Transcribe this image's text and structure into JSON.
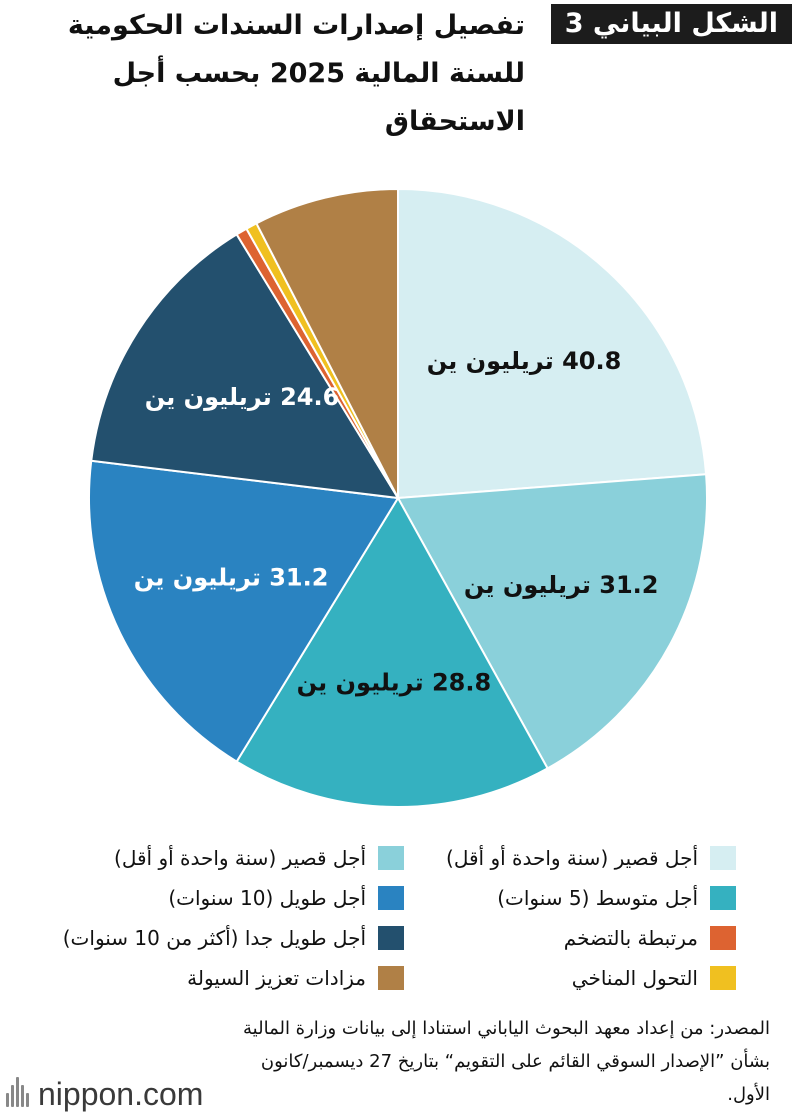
{
  "header": {
    "figure_label": "الشكل البياني 3",
    "title": "تفصيل إصدارات السندات الحكومية للسنة المالية 2025 بحسب أجل الاستحقاق"
  },
  "chart_data": {
    "type": "pie",
    "unit": "تريليون ين",
    "start_angle_deg": 0,
    "direction": "clockwise",
    "slices": [
      {
        "label": "أجل قصير (سنة واحدة أو أقل)",
        "value": 40.8,
        "data_label": "40.8 تريليون ين",
        "color": "#d6eef2",
        "label_color": "#111111"
      },
      {
        "label": "أجل قصير (سنة واحدة أو أقل)",
        "value": 31.2,
        "data_label": "31.2 تريليون ين",
        "color": "#8ad0da",
        "label_color": "#111111"
      },
      {
        "label": "أجل متوسط (5 سنوات)",
        "value": 28.8,
        "data_label": "28.8 تريليون ين",
        "color": "#35b1c0",
        "label_color": "#111111"
      },
      {
        "label": "أجل طويل (10 سنوات)",
        "value": 31.2,
        "data_label": "31.2 تريليون ين",
        "color": "#2a83c1",
        "label_color": "#ffffff"
      },
      {
        "label": "أجل طويل جدا (أكثر من 10 سنوات)",
        "value": 24.6,
        "data_label": "24.6 تريليون ين",
        "color": "#23506e",
        "label_color": "#ffffff"
      },
      {
        "label": "مرتبطة بالتضخم",
        "value": 1.0,
        "data_label": "",
        "color": "#dd6331",
        "label_color": "#111111"
      },
      {
        "label": "التحول المناخي",
        "value": 1.0,
        "data_label": "",
        "color": "#f0c020",
        "label_color": "#111111"
      },
      {
        "label": "مزادات تعزيز السيولة",
        "value": 13.0,
        "data_label": "",
        "color": "#b08046",
        "label_color": "#111111"
      }
    ]
  },
  "legend": {
    "items": [
      {
        "label": "أجل قصير (سنة واحدة أو أقل)",
        "color": "#d6eef2"
      },
      {
        "label": "أجل قصير (سنة واحدة أو أقل)",
        "color": "#8ad0da"
      },
      {
        "label": "أجل متوسط (5 سنوات)",
        "color": "#35b1c0"
      },
      {
        "label": "أجل طويل (10 سنوات)",
        "color": "#2a83c1"
      },
      {
        "label": "مرتبطة بالتضخم",
        "color": "#dd6331"
      },
      {
        "label": "أجل طويل جدا (أكثر من 10 سنوات)",
        "color": "#23506e"
      },
      {
        "label": "التحول المناخي",
        "color": "#f0c020"
      },
      {
        "label": "مزادات تعزيز السيولة",
        "color": "#b08046"
      }
    ]
  },
  "source": "المصدر: من إعداد معهد البحوث الياباني استنادا إلى بيانات وزارة المالية بشأن ”الإصدار السوقي القائم على التقويم“ بتاريخ 27 ديسمبر/كانون الأول.",
  "logo": {
    "text": "nippon.com"
  }
}
